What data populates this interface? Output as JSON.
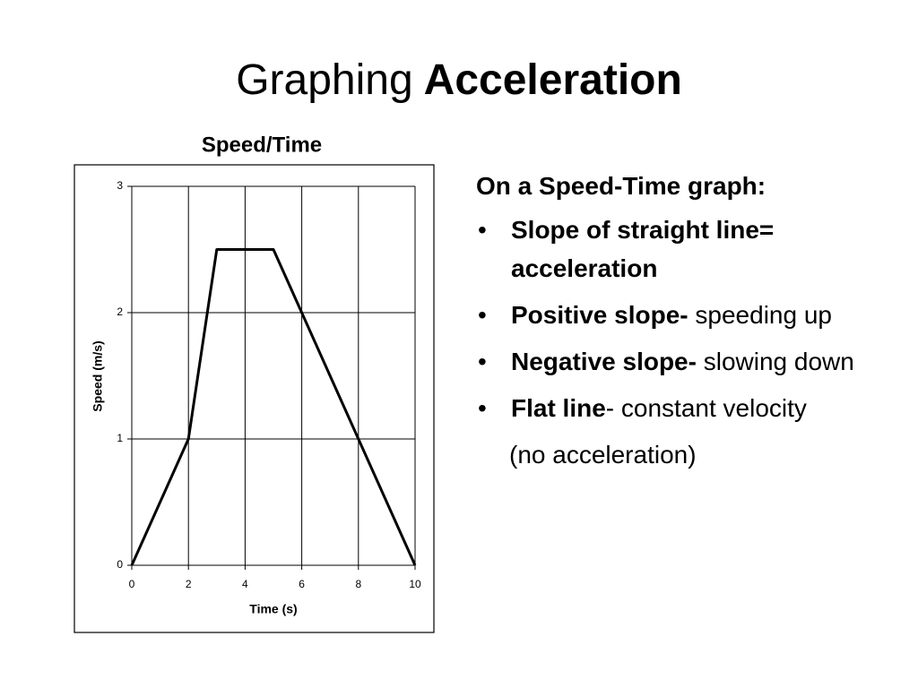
{
  "slide": {
    "title": [
      {
        "text": "Graphing",
        "bold": false
      },
      {
        "text": "Acceleration",
        "bold": true
      }
    ]
  },
  "chart_data": {
    "type": "line",
    "title": "Speed/Time",
    "x_label": "Time (s)",
    "y_label": "Speed (m/s)",
    "x": [
      0,
      2,
      3,
      5,
      8,
      10
    ],
    "series": [
      {
        "name": "Speed",
        "color": "#000000",
        "values": [
          0,
          1,
          2.5,
          2.5,
          1,
          0
        ]
      }
    ],
    "xlim": [
      0,
      10
    ],
    "ylim": [
      0,
      3
    ],
    "xticks": [
      0,
      2,
      4,
      6,
      8,
      10
    ],
    "yticks": [
      0,
      1,
      2,
      3
    ],
    "grid": true
  },
  "text_box": {
    "heading": "On a Speed-Time graph:",
    "bullets": [
      [
        {
          "text": "Slope of straight line= acceleration",
          "bold": true
        }
      ],
      [
        {
          "text": "Positive slope-",
          "bold": true
        },
        {
          "text": " speeding up",
          "bold": false
        }
      ],
      [
        {
          "text": "Negative slope-",
          "bold": true
        },
        {
          "text": " slowing down",
          "bold": false
        }
      ],
      [
        {
          "text": "Flat line",
          "bold": true
        },
        {
          "text": "- constant velocity",
          "bold": false
        }
      ]
    ],
    "note": "(no acceleration)"
  }
}
